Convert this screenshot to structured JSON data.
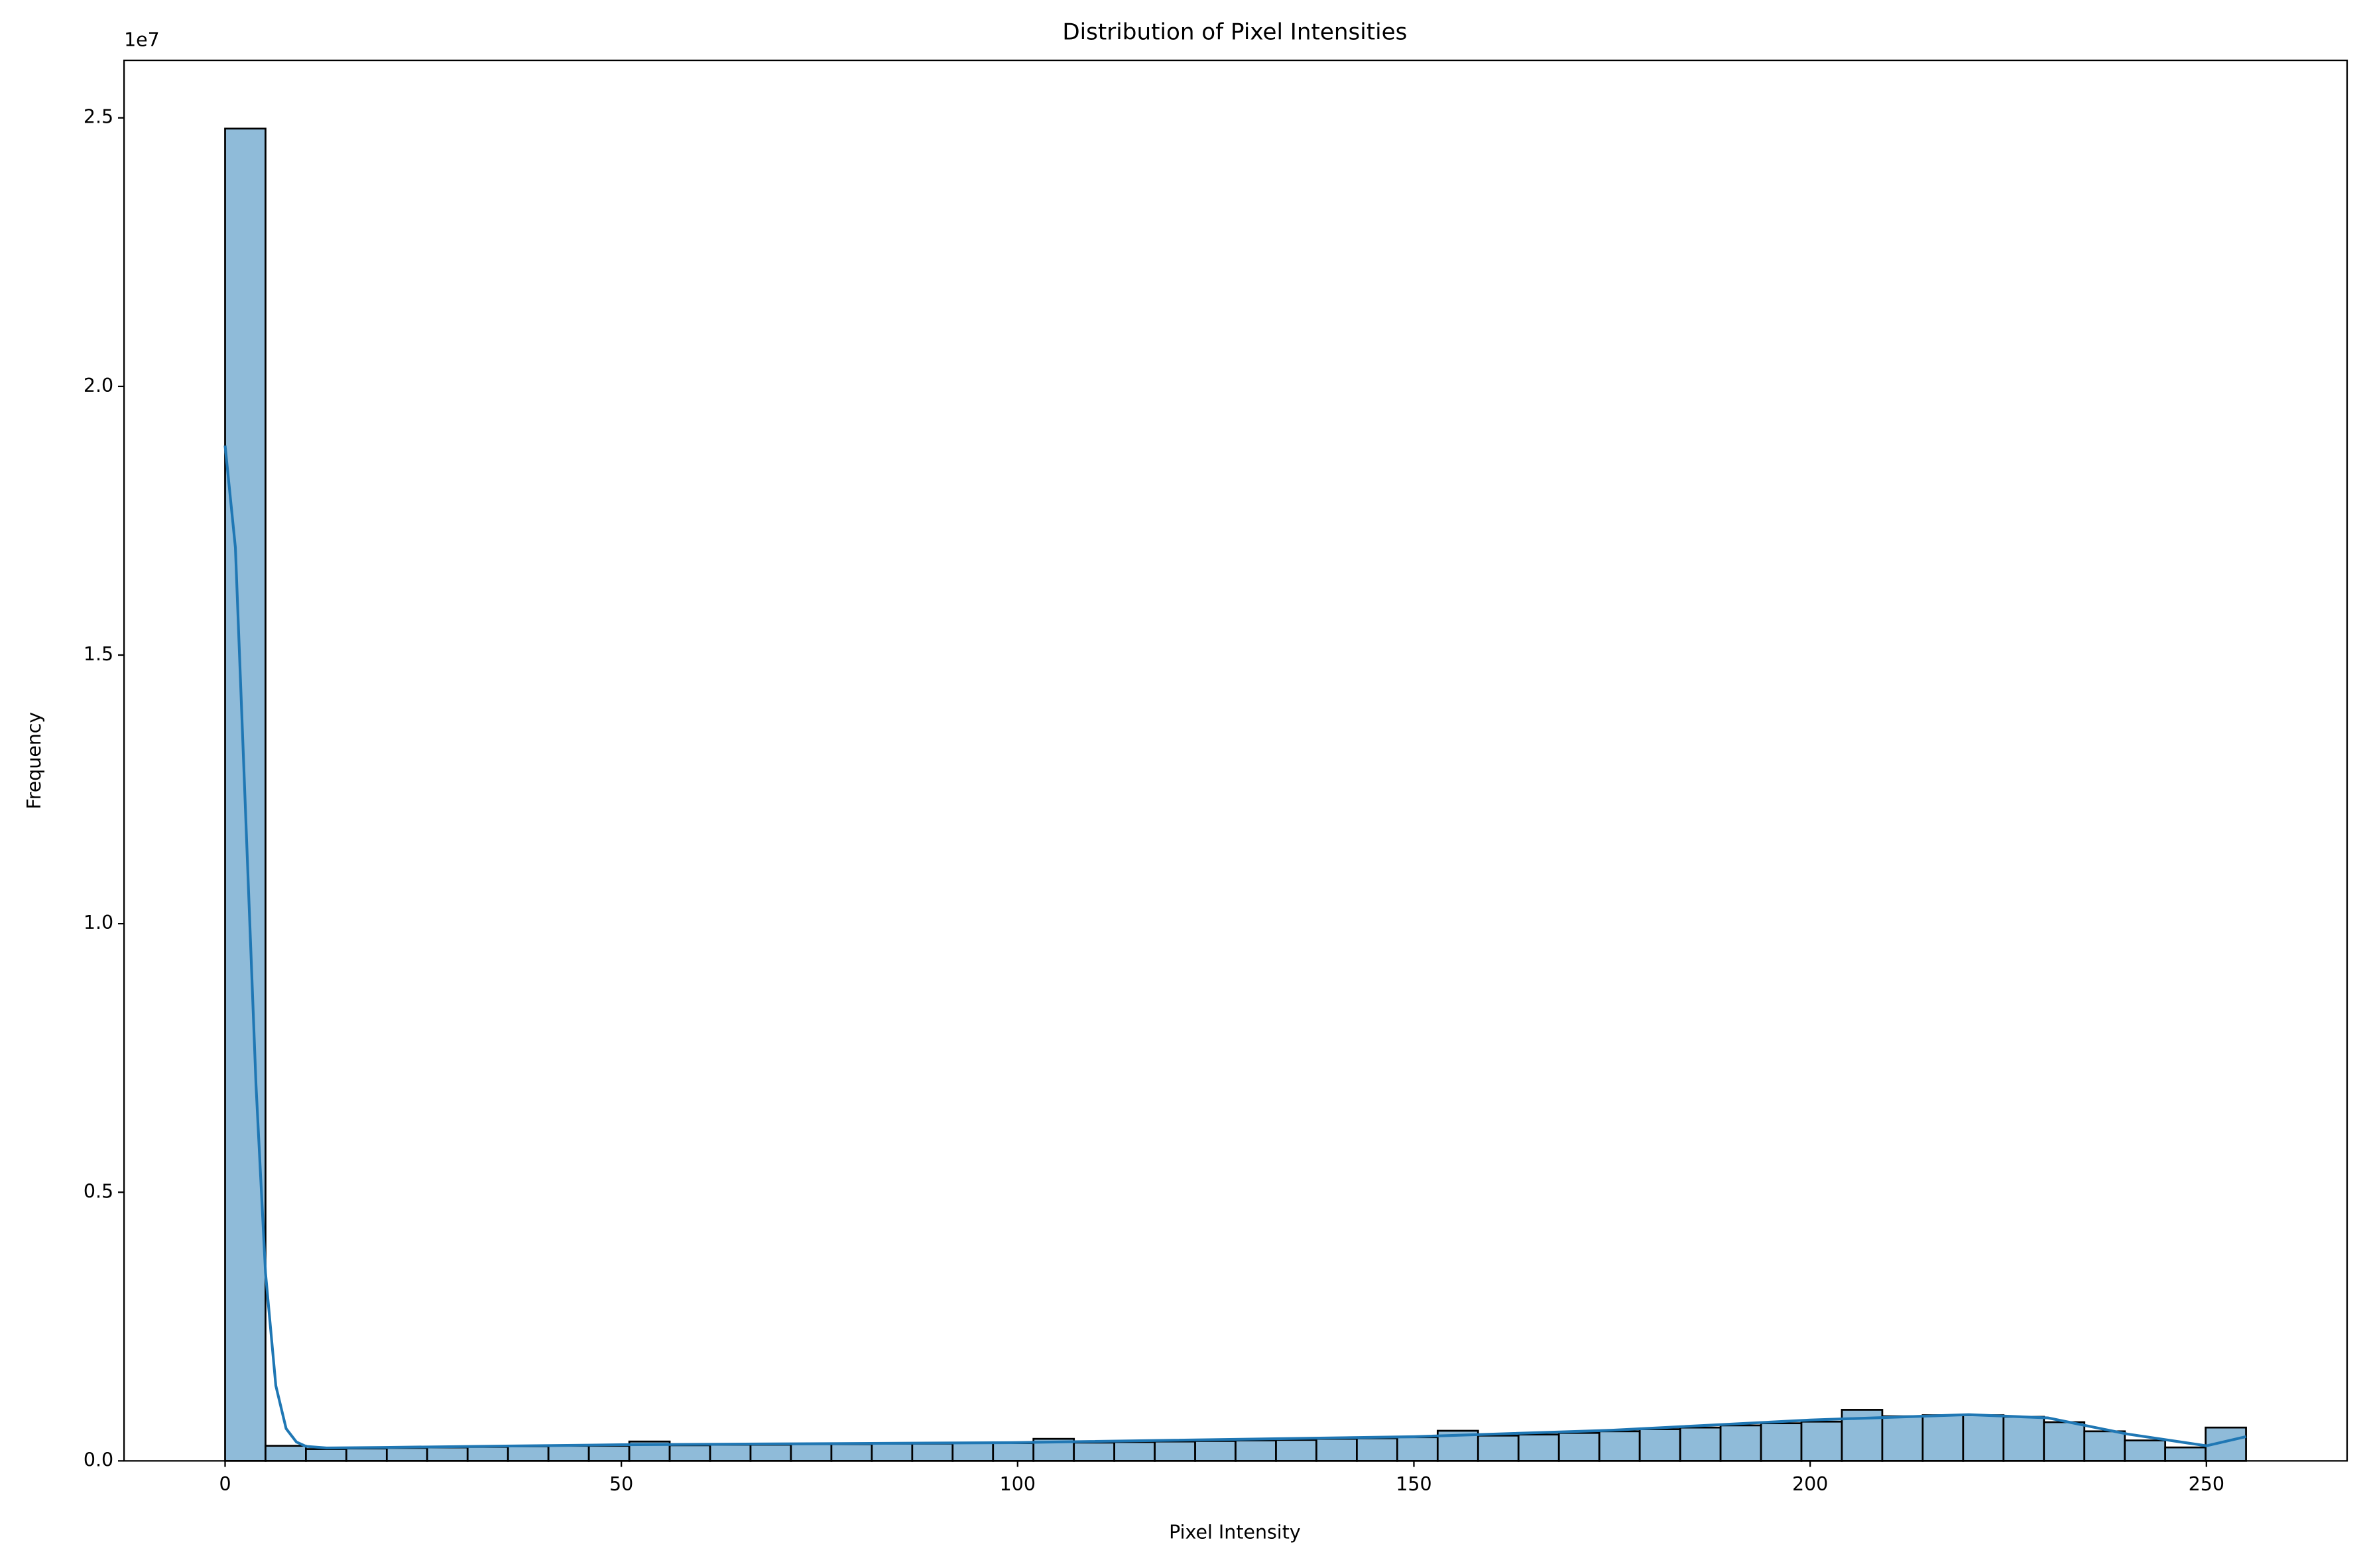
{
  "chart_data": {
    "type": "histogram",
    "title": "Distribution of Pixel Intensities",
    "x_label": "Pixel Intensity",
    "y_label": "Frequency",
    "y_offset_label": "1e7",
    "bins": [
      0,
      5.1,
      10.2,
      15.3,
      20.4,
      25.5,
      30.6,
      35.7,
      40.8,
      45.9,
      51,
      56.1,
      61.2,
      66.3,
      71.4,
      76.5,
      81.6,
      86.7,
      91.8,
      96.9,
      102,
      107.1,
      112.2,
      117.3,
      122.4,
      127.5,
      132.6,
      137.7,
      142.8,
      147.9,
      153,
      158.1,
      163.2,
      168.3,
      173.4,
      178.5,
      183.6,
      188.7,
      193.8,
      198.9,
      204,
      209.1,
      214.2,
      219.3,
      224.4,
      229.5,
      234.6,
      239.7,
      244.8,
      249.9,
      255
    ],
    "values": [
      24800000,
      280000,
      220000,
      230000,
      240000,
      250000,
      260000,
      270000,
      280000,
      280000,
      360000,
      290000,
      300000,
      300000,
      310000,
      310000,
      320000,
      320000,
      330000,
      330000,
      410000,
      340000,
      350000,
      360000,
      370000,
      380000,
      390000,
      410000,
      420000,
      440000,
      560000,
      470000,
      490000,
      520000,
      550000,
      590000,
      620000,
      660000,
      700000,
      730000,
      950000,
      830000,
      850000,
      850000,
      820000,
      720000,
      550000,
      380000,
      250000,
      620000
    ],
    "color": "#8fbbd9",
    "edge_color": "#000000",
    "kde": {
      "color": "#1f77b4",
      "x": [
        0,
        1.3,
        2.6,
        3.9,
        5.1,
        6.4,
        7.7,
        9,
        10.2,
        12.8,
        20,
        50,
        100,
        150,
        175,
        200,
        220,
        230,
        240,
        250,
        255
      ],
      "values": [
        18900000,
        17000000,
        12000000,
        7000000,
        3500000,
        1400000,
        600000,
        350000,
        270000,
        240000,
        250000,
        300000,
        340000,
        450000,
        570000,
        760000,
        860000,
        800000,
        500000,
        280000,
        450000
      ]
    },
    "xlim": [
      -12.75,
      267.75
    ],
    "ylim": [
      0,
      26070000
    ],
    "xticks": [
      0,
      50,
      100,
      150,
      200,
      250
    ],
    "yticks": [
      {
        "value": 0,
        "label": "0.0"
      },
      {
        "value": 5000000,
        "label": "0.5"
      },
      {
        "value": 10000000,
        "label": "1.0"
      },
      {
        "value": 15000000,
        "label": "1.5"
      },
      {
        "value": 20000000,
        "label": "2.0"
      },
      {
        "value": 25000000,
        "label": "2.5"
      }
    ]
  }
}
